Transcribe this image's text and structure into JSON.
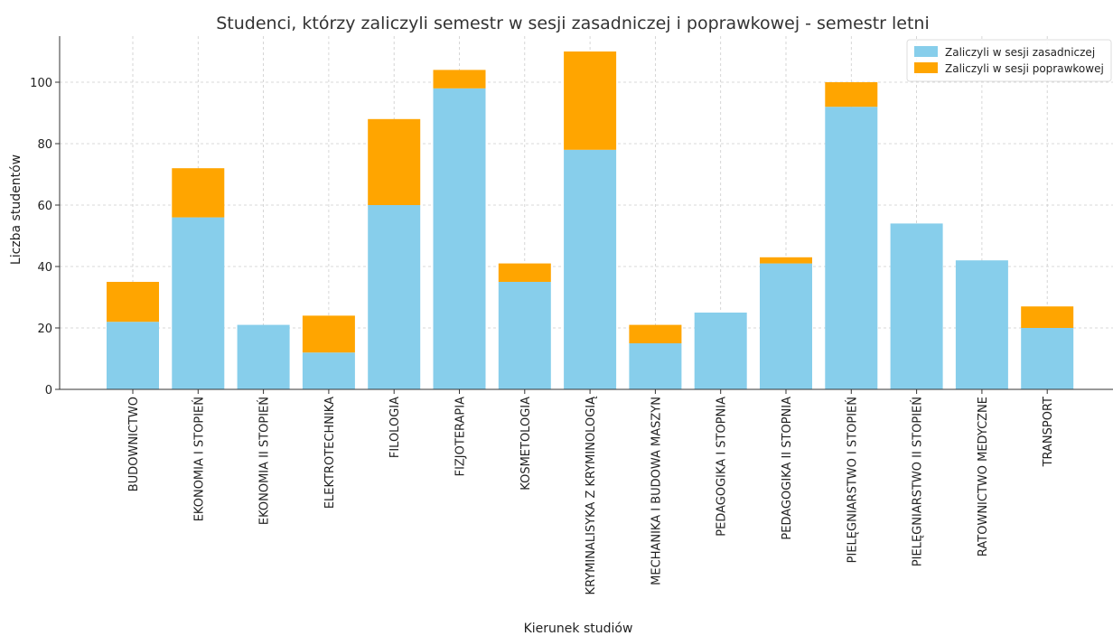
{
  "chart_data": {
    "type": "bar",
    "stacked": true,
    "title": "Studenci, którzy zaliczyli semestr w sesji zasadniczej i poprawkowej - semestr letni",
    "xlabel": "Kierunek studiów",
    "ylabel": "Liczba studentów",
    "ylim": [
      0,
      115
    ],
    "yticks": [
      0,
      20,
      40,
      60,
      80,
      100
    ],
    "grid": true,
    "legend_position": "top-right",
    "categories": [
      "BUDOWNICTWO",
      "EKONOMIA I STOPIEŃ",
      "EKONOMIA II STOPIEŃ",
      "ELEKTROTECHNIKA",
      "FILOLOGIA",
      "FIZJOTERAPIA",
      "KOSMETOLOGIA",
      "KRYMINALISYKA Z KRYMINOLOGIĄ",
      "MECHANIKA I BUDOWA  MASZYN",
      "PEDAGOGIKA I STOPNIA",
      "PEDAGOGIKA II STOPNIA",
      "PIELĘGNIARSTWO I STOPIEŃ",
      "PIELĘGNIARSTWO II STOPIEŃ",
      "RATOWNICTWO MEDYCZNE",
      "TRANSPORT"
    ],
    "series": [
      {
        "name": "Zaliczyli w sesji zasadniczej",
        "color": "#87CEEB",
        "values": [
          22,
          56,
          21,
          12,
          60,
          98,
          35,
          78,
          15,
          25,
          41,
          92,
          54,
          42,
          20
        ]
      },
      {
        "name": "Zaliczyli w sesji poprawkowej",
        "color": "#FFA500",
        "values": [
          13,
          16,
          0,
          12,
          28,
          6,
          6,
          32,
          6,
          0,
          2,
          8,
          0,
          0,
          7
        ]
      }
    ]
  }
}
